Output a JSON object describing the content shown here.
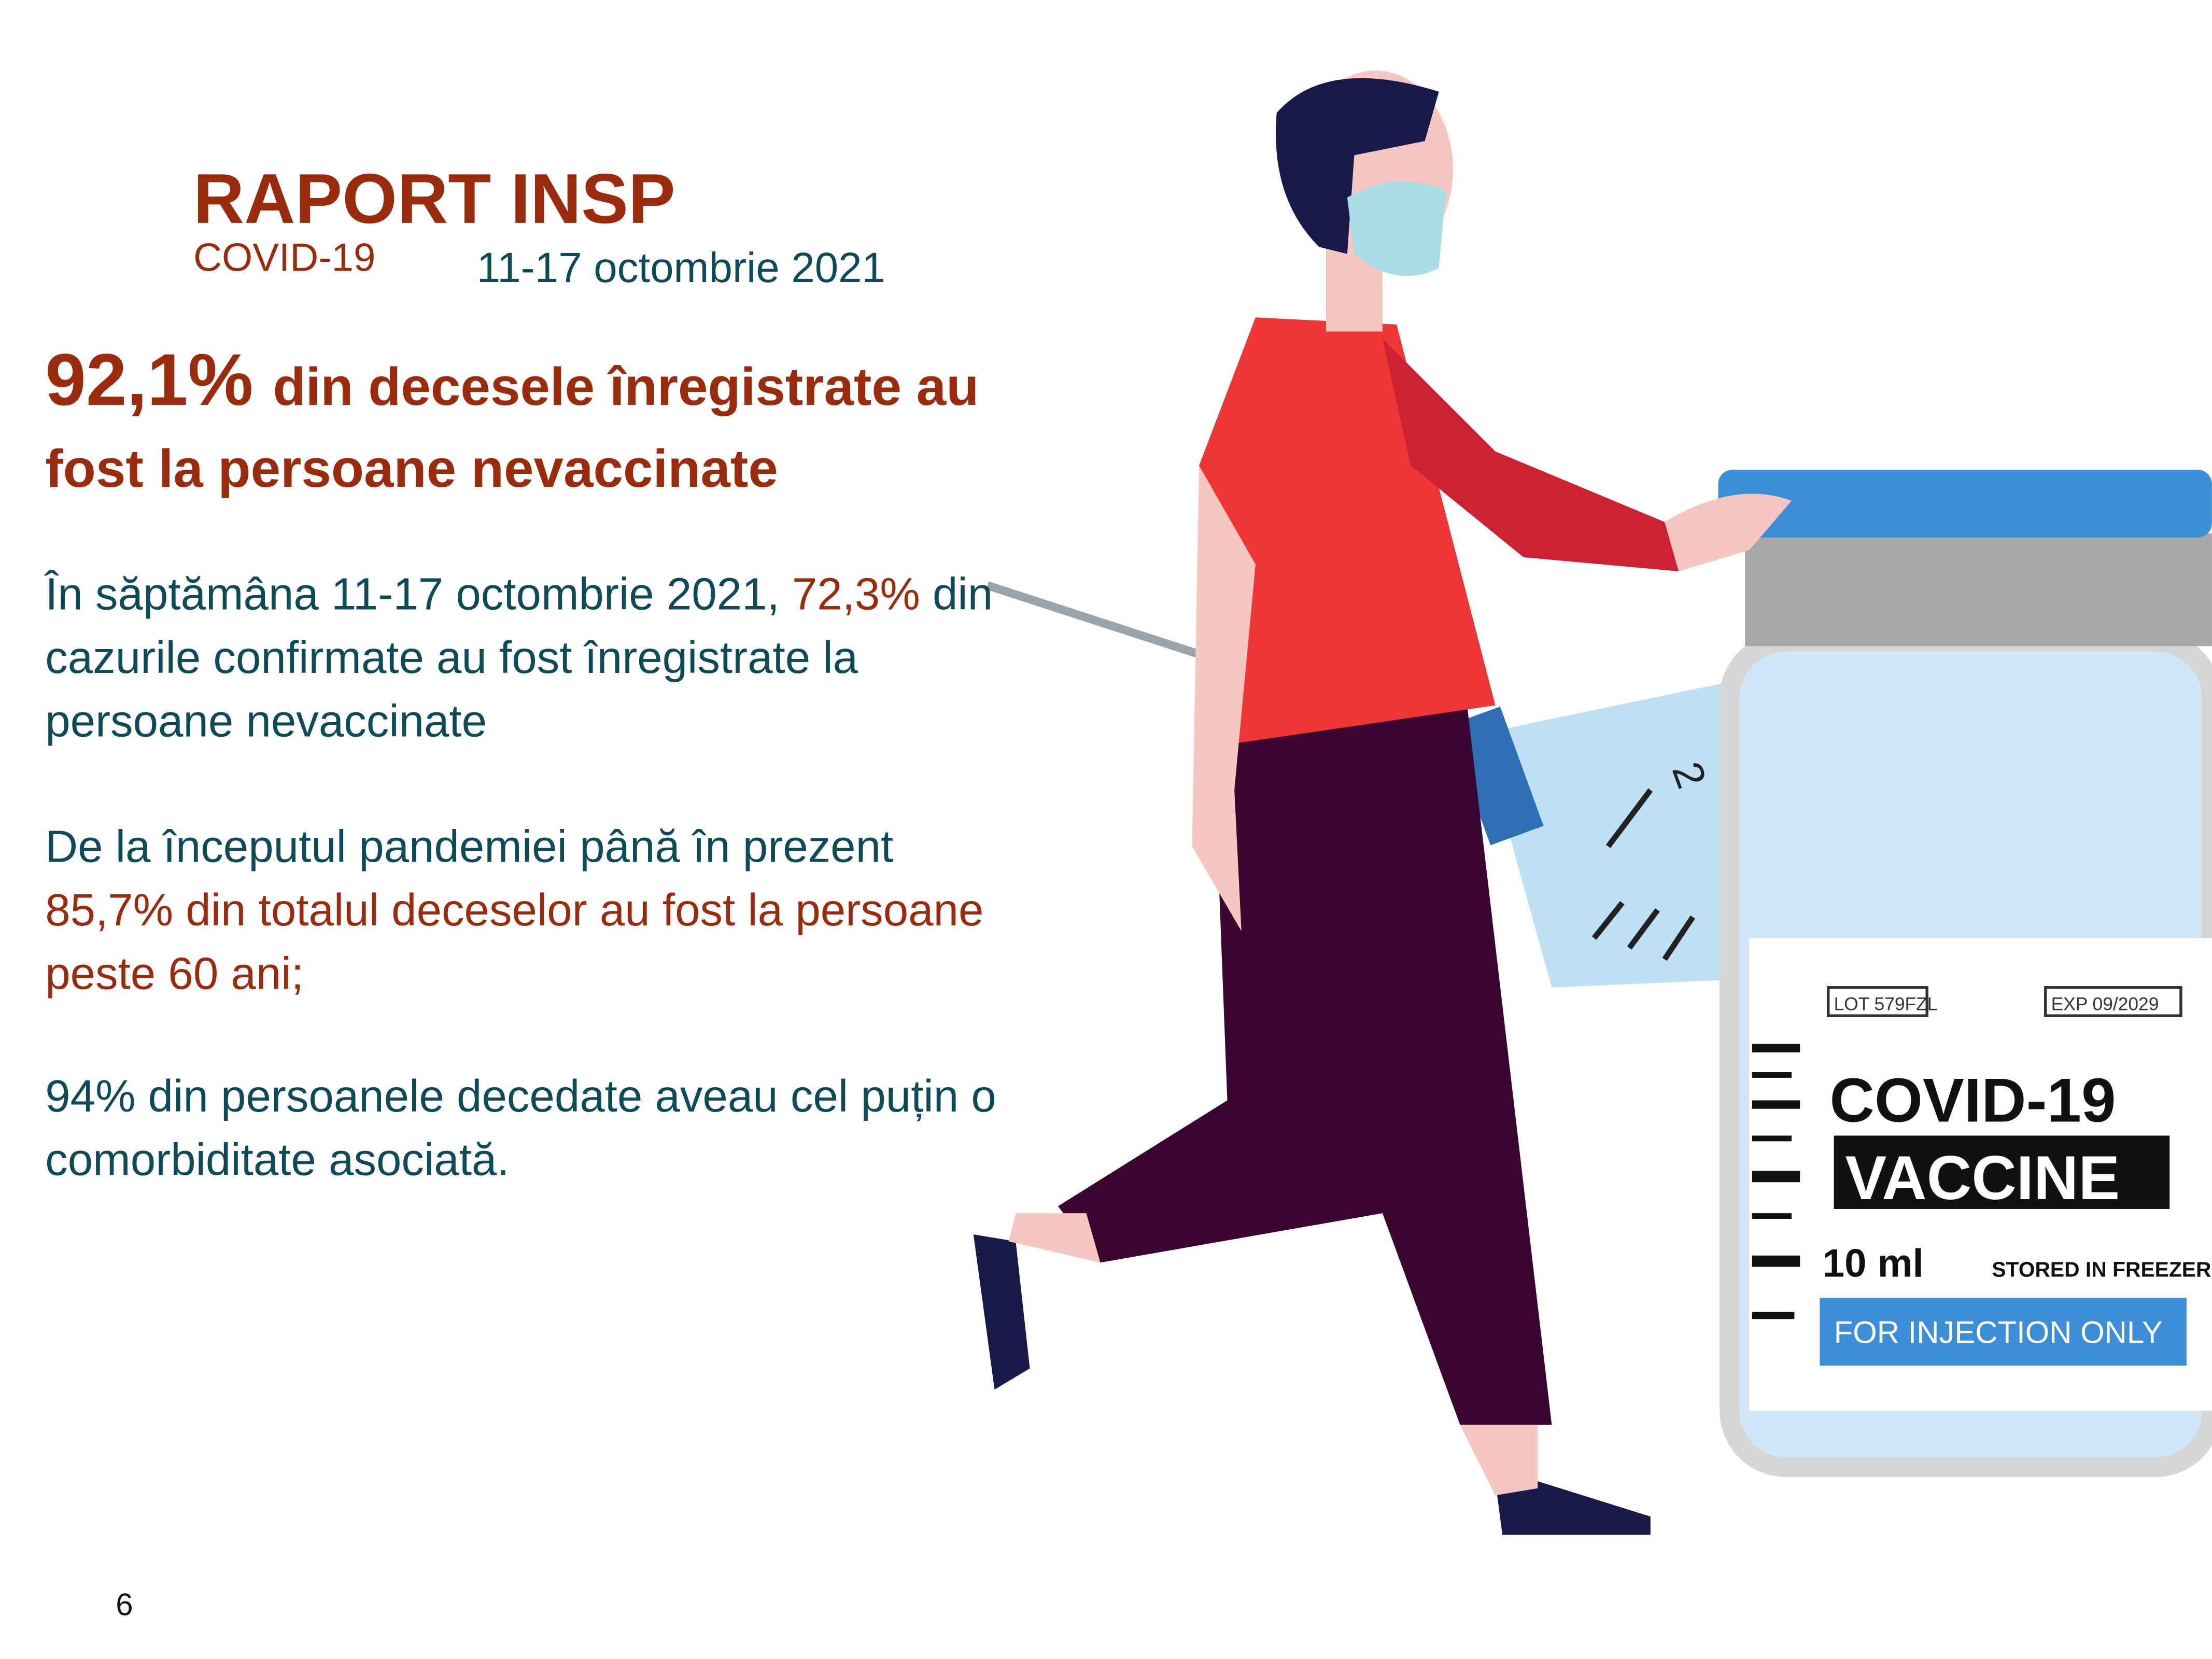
{
  "header": {
    "title": "RAPORT INSP",
    "subtitle": "COVID-19",
    "date": "11-17 octombrie 2021"
  },
  "headline": {
    "percent": "92,1%",
    "lines": [
      "din decesele înregistrate au",
      "fost la persoane nevaccinate"
    ]
  },
  "paragraphs": [
    [
      [
        {
          "text": "În săptămâna 11-17 octombrie 2021, ",
          "color": "#0e4a57"
        },
        {
          "text": "72,3%",
          "color": "#9a2c0d"
        },
        {
          "text": " din",
          "color": "#0e4a57"
        }
      ],
      [
        {
          "text": "cazurile confirmate au fost înregistrate la",
          "color": "#0e4a57"
        }
      ],
      [
        {
          "text": "persoane nevaccinate",
          "color": "#0e4a57"
        }
      ]
    ],
    [
      [
        {
          "text": "De la începutul pandemiei până în prezent",
          "color": "#0e4a57"
        }
      ],
      [
        {
          "text": "85,7% din totalul deceselor au fost la persoane",
          "color": "#9a2c0d"
        }
      ],
      [
        {
          "text": "peste 60 ani;",
          "color": "#9a2c0d"
        }
      ]
    ],
    [
      [
        {
          "text": "94% din persoanele decedate aveau cel puțin o",
          "color": "#0e4a57"
        }
      ],
      [
        {
          "text": "comorbiditate asociată.",
          "color": "#0e4a57"
        }
      ]
    ]
  ],
  "vial": {
    "lot": "LOT 579FZL",
    "exp": "EXP 09/2029",
    "name": "COVID-19",
    "word": "VACCINE",
    "volume": "10 ml",
    "storage": "STORED IN FREEZER",
    "note": "FOR INJECTION ONLY"
  },
  "syringe": {
    "mark": "2"
  },
  "page_number": "6"
}
